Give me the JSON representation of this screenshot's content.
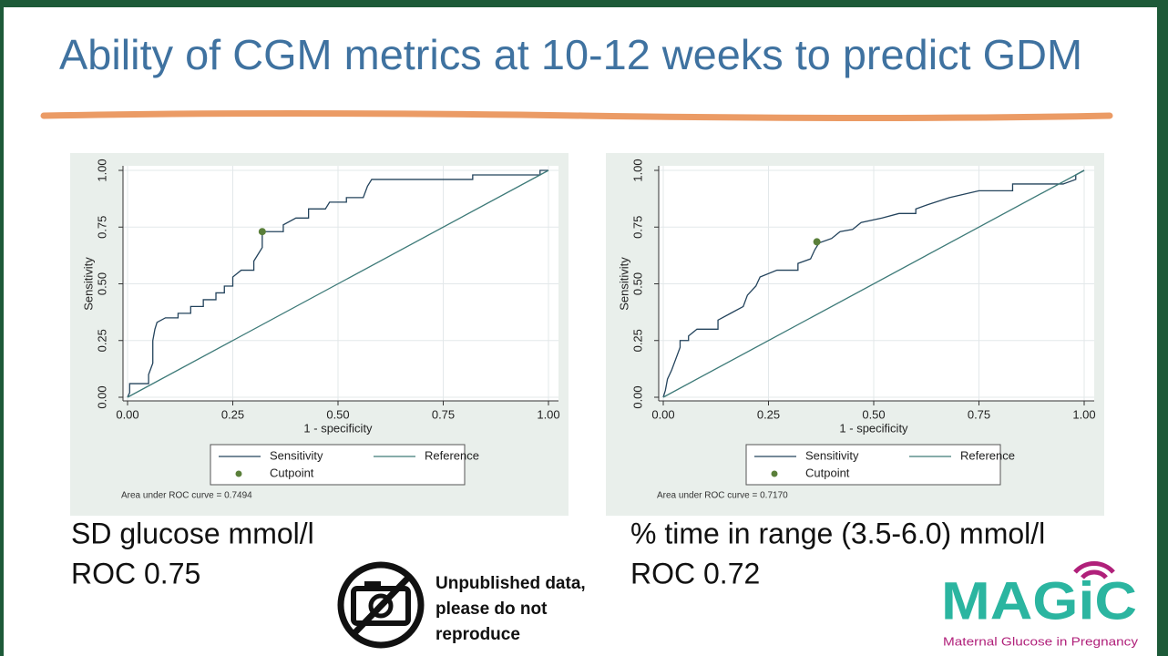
{
  "title": "Ability of CGM metrics at 10-12 weeks to predict GDM",
  "chart_data": [
    {
      "type": "line",
      "x_label": "1 - specificity",
      "y_label": "Sensitivity",
      "annotation": "Area under ROC curve = 0.7494",
      "xlim": [
        0,
        1
      ],
      "ylim": [
        0,
        1
      ],
      "xticks": [
        {
          "value": 0,
          "label": "0.00"
        },
        {
          "value": 0.25,
          "label": "0.25"
        },
        {
          "value": 0.5,
          "label": "0.50"
        },
        {
          "value": 0.75,
          "label": "0.75"
        },
        {
          "value": 1,
          "label": "1.00"
        }
      ],
      "yticks": [
        {
          "value": 0,
          "label": "0.00"
        },
        {
          "value": 0.25,
          "label": "0.25"
        },
        {
          "value": 0.5,
          "label": "0.50"
        },
        {
          "value": 0.75,
          "label": "0.75"
        },
        {
          "value": 1,
          "label": "1.00"
        }
      ],
      "grid": true,
      "series": [
        {
          "name": "Sensitivity",
          "color": "#23435c",
          "x": [
            0,
            0.005,
            0.005,
            0.05,
            0.05,
            0.06,
            0.06,
            0.065,
            0.07,
            0.09,
            0.12,
            0.12,
            0.15,
            0.15,
            0.18,
            0.18,
            0.21,
            0.21,
            0.23,
            0.23,
            0.25,
            0.25,
            0.27,
            0.3,
            0.3,
            0.31,
            0.32,
            0.32,
            0.37,
            0.37,
            0.4,
            0.43,
            0.43,
            0.47,
            0.48,
            0.52,
            0.52,
            0.56,
            0.57,
            0.58,
            0.82,
            0.82,
            0.98,
            0.98,
            1
          ],
          "values": [
            0,
            0.02,
            0.06,
            0.06,
            0.1,
            0.15,
            0.25,
            0.3,
            0.33,
            0.35,
            0.35,
            0.37,
            0.37,
            0.4,
            0.4,
            0.43,
            0.43,
            0.46,
            0.46,
            0.49,
            0.49,
            0.53,
            0.56,
            0.56,
            0.6,
            0.63,
            0.66,
            0.73,
            0.73,
            0.76,
            0.79,
            0.79,
            0.83,
            0.83,
            0.86,
            0.86,
            0.88,
            0.88,
            0.93,
            0.96,
            0.96,
            0.98,
            0.98,
            1,
            1
          ]
        },
        {
          "name": "Reference",
          "color": "#3d7a78",
          "x": [
            0,
            1
          ],
          "values": [
            0,
            1
          ]
        },
        {
          "name": "Cutpoint",
          "type": "scatter",
          "color": "#5a7f3a",
          "x": [
            0.32
          ],
          "values": [
            0.73
          ]
        }
      ]
    },
    {
      "type": "line",
      "x_label": "1 - specificity",
      "y_label": "Sensitivity",
      "annotation": "Area under ROC curve = 0.7170",
      "xlim": [
        0,
        1
      ],
      "ylim": [
        0,
        1
      ],
      "xticks": [
        {
          "value": 0,
          "label": "0.00"
        },
        {
          "value": 0.25,
          "label": "0.25"
        },
        {
          "value": 0.5,
          "label": "0.50"
        },
        {
          "value": 0.75,
          "label": "0.75"
        },
        {
          "value": 1,
          "label": "1.00"
        }
      ],
      "yticks": [
        {
          "value": 0,
          "label": "0.00"
        },
        {
          "value": 0.25,
          "label": "0.25"
        },
        {
          "value": 0.5,
          "label": "0.50"
        },
        {
          "value": 0.75,
          "label": "0.75"
        },
        {
          "value": 1,
          "label": "1.00"
        }
      ],
      "grid": true,
      "series": [
        {
          "name": "Sensitivity",
          "color": "#23435c",
          "x": [
            0,
            0.005,
            0.01,
            0.02,
            0.03,
            0.04,
            0.04,
            0.06,
            0.06,
            0.08,
            0.13,
            0.13,
            0.16,
            0.19,
            0.2,
            0.22,
            0.23,
            0.27,
            0.32,
            0.32,
            0.35,
            0.36,
            0.37,
            0.4,
            0.42,
            0.45,
            0.47,
            0.52,
            0.56,
            0.6,
            0.6,
            0.63,
            0.68,
            0.75,
            0.83,
            0.83,
            0.95,
            0.98,
            0.98,
            1
          ],
          "values": [
            0,
            0.03,
            0.08,
            0.12,
            0.17,
            0.22,
            0.25,
            0.25,
            0.27,
            0.3,
            0.3,
            0.34,
            0.37,
            0.4,
            0.45,
            0.49,
            0.53,
            0.56,
            0.56,
            0.59,
            0.61,
            0.65,
            0.68,
            0.7,
            0.73,
            0.74,
            0.77,
            0.79,
            0.81,
            0.81,
            0.83,
            0.85,
            0.88,
            0.91,
            0.91,
            0.94,
            0.94,
            0.96,
            0.98,
            1
          ]
        },
        {
          "name": "Reference",
          "color": "#3d7a78",
          "x": [
            0,
            1
          ],
          "values": [
            0,
            1
          ]
        },
        {
          "name": "Cutpoint",
          "type": "scatter",
          "color": "#5a7f3a",
          "x": [
            0.365
          ],
          "values": [
            0.685
          ]
        }
      ]
    }
  ],
  "captions": [
    {
      "metric": "SD glucose mmol/l",
      "roc": "ROC 0.75"
    },
    {
      "metric": "% time in range (3.5-6.0) mmol/l",
      "roc": "ROC 0.72"
    }
  ],
  "notice": [
    "Unpublished data,",
    "please do not",
    "reproduce"
  ],
  "logo": {
    "name": "MAGiC",
    "tagline": "Maternal Glucose in Pregnancy"
  }
}
